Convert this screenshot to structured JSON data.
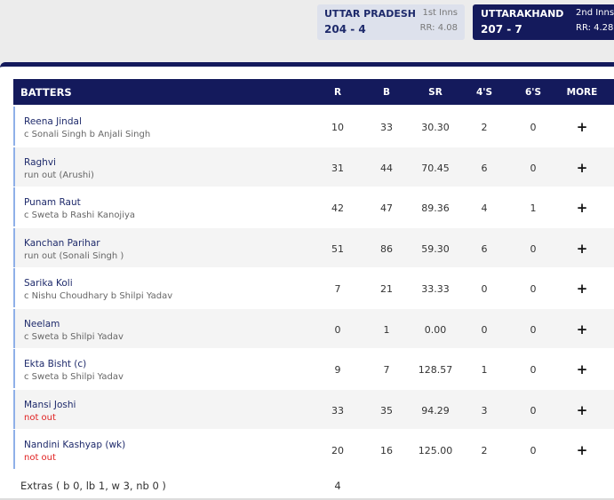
{
  "teams": [
    {
      "name": "UTTAR PRADESH",
      "innings": "1st Inns",
      "score": "204 - 4",
      "run_rate": "RR: 4.08"
    },
    {
      "name": "UTTARAKHAND",
      "innings": "2nd Inns",
      "score": "207 - 7",
      "run_rate": "RR: 4.28"
    }
  ],
  "table": {
    "headers": [
      "BATTERS",
      "R",
      "B",
      "SR",
      "4'S",
      "6'S",
      "MORE"
    ],
    "rows": [
      {
        "name": "Reena Jindal",
        "dismissal": "c Sonali Singh b Anjali Singh",
        "stats": [
          "10",
          "33",
          "30.30",
          "2",
          "0"
        ]
      },
      {
        "name": "Raghvi",
        "dismissal": "run out (Arushi)",
        "stats": [
          "31",
          "44",
          "70.45",
          "6",
          "0"
        ]
      },
      {
        "name": "Punam Raut",
        "dismissal": "c Sweta b Rashi Kanojiya",
        "stats": [
          "42",
          "47",
          "89.36",
          "4",
          "1"
        ]
      },
      {
        "name": "Kanchan Parihar",
        "dismissal": "run out (Sonali Singh )",
        "stats": [
          "51",
          "86",
          "59.30",
          "6",
          "0"
        ]
      },
      {
        "name": "Sarika Koli",
        "dismissal": "c Nishu Choudhary b Shilpi Yadav",
        "stats": [
          "7",
          "21",
          "33.33",
          "0",
          "0"
        ]
      },
      {
        "name": "Neelam",
        "dismissal": "c Sweta b Shilpi Yadav",
        "stats": [
          "0",
          "1",
          "0.00",
          "0",
          "0"
        ]
      },
      {
        "name": "Ekta Bisht (c)",
        "dismissal": "c Sweta b Shilpi Yadav",
        "stats": [
          "9",
          "7",
          "128.57",
          "1",
          "0"
        ]
      },
      {
        "name": "Mansi Joshi",
        "dismissal": "not out",
        "stats": [
          "33",
          "35",
          "94.29",
          "3",
          "0"
        ]
      },
      {
        "name": "Nandini Kashyap (wk)",
        "dismissal": "not out",
        "stats": [
          "20",
          "16",
          "125.00",
          "2",
          "0"
        ]
      }
    ],
    "extras": {
      "label": "Extras ( b 0, lb 1, w 3, nb 0 )",
      "value": "4"
    }
  }
}
